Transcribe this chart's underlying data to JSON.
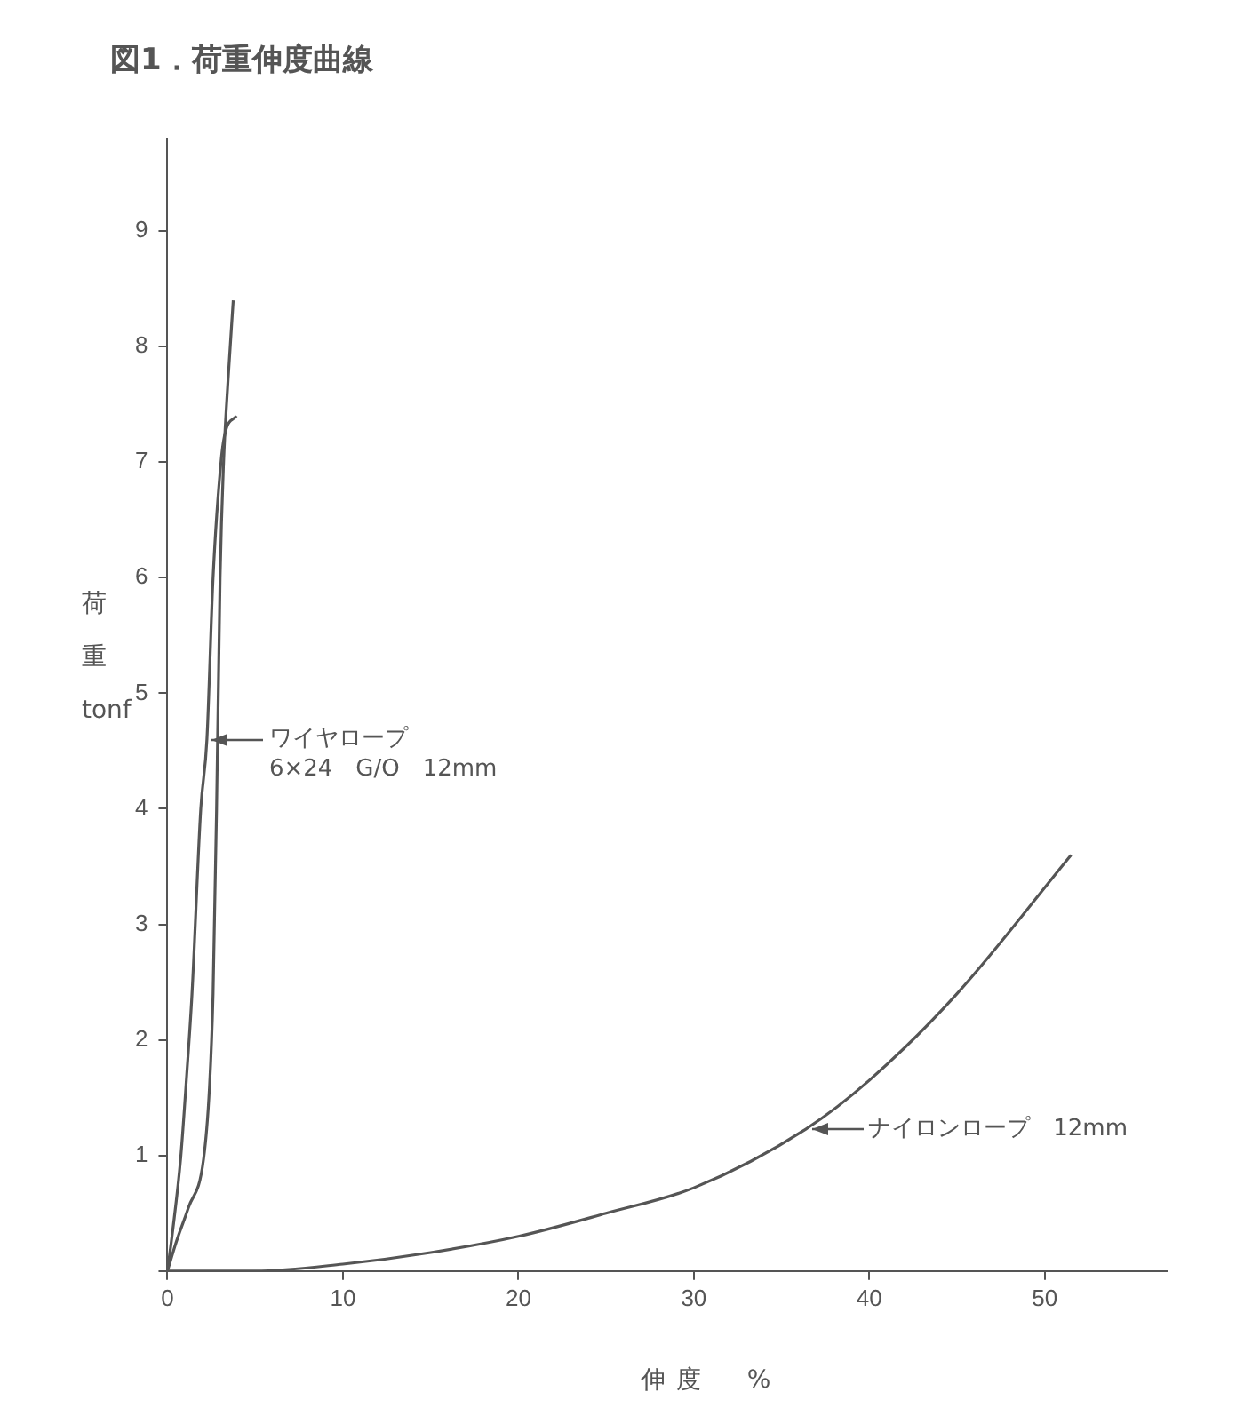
{
  "chart_data": {
    "type": "line",
    "title": "図1．荷重伸度曲線",
    "xlabel": "伸度　%",
    "ylabel": "荷重 tonf",
    "xlim": [
      0,
      57
    ],
    "ylim": [
      0,
      9.8
    ],
    "xticks": [
      0,
      10,
      20,
      30,
      40,
      50
    ],
    "yticks": [
      {
        "value": 0,
        "label": null
      },
      1,
      2,
      3,
      4,
      5,
      6,
      7,
      8,
      9
    ],
    "grid": false,
    "legend": false,
    "marker": "none",
    "line_style": "solid",
    "series": [
      {
        "color": "#555555",
        "x": [
          0,
          0.5,
          1.2,
          2.06,
          2.4,
          2.6,
          2.8,
          3.0,
          3.2,
          3.45,
          3.75
        ],
        "values": [
          0,
          0.25,
          0.55,
          0.97,
          1.6,
          2.4,
          4.0,
          6.0,
          7.0,
          7.7,
          8.4
        ]
      },
      {
        "color": "#555555",
        "x": [
          0,
          0.3,
          0.75,
          1.1,
          1.4,
          1.9,
          2.25,
          2.6,
          3.07,
          3.3,
          3.93
        ],
        "values": [
          0,
          0.35,
          0.97,
          1.7,
          2.4,
          4.0,
          4.6,
          6.0,
          7.03,
          7.26,
          7.4
        ]
      },
      {
        "color": "#555555",
        "x": [
          0,
          5,
          10,
          15,
          20,
          25,
          30,
          36.4,
          40,
          45,
          51.5
        ],
        "values": [
          0,
          0.0,
          0.06,
          0.16,
          0.3,
          0.5,
          0.72,
          1.23,
          1.65,
          2.4,
          3.6
        ]
      }
    ],
    "annotations": [
      {
        "text": "ワイヤロープ\n6×24　G/O　12mm",
        "x": 2.25,
        "y": 4.6
      },
      {
        "text": "ナイロンロープ　12mm",
        "x": 36.4,
        "y": 1.23
      }
    ]
  }
}
